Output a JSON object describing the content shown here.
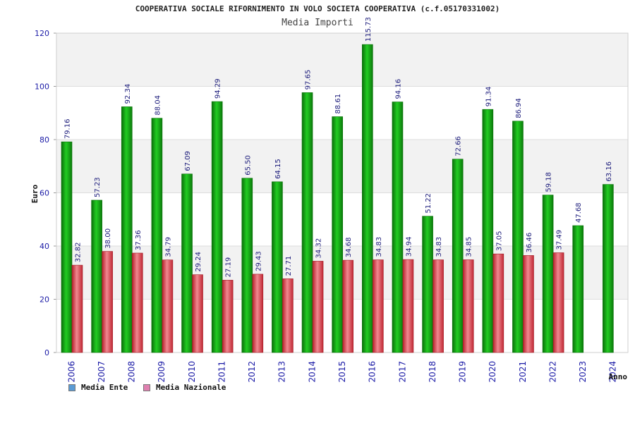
{
  "chart_data": {
    "type": "bar",
    "title": "COOPERATIVA SOCIALE RIFORNIMENTO IN VOLO SOCIETA COOPERATIVA (c.f.05170331002)",
    "subtitle": "Media Importi",
    "ylabel": "Euro",
    "xlabel": "Anno",
    "ylim": [
      0,
      120
    ],
    "yticks": [
      "0",
      "20",
      "40",
      "60",
      "80",
      "100",
      "120"
    ],
    "grid": true,
    "legend_position": "bottom-left",
    "categories": [
      "2006",
      "2007",
      "2008",
      "2009",
      "2010",
      "2011",
      "2012",
      "2013",
      "2014",
      "2015",
      "2016",
      "2017",
      "2018",
      "2019",
      "2020",
      "2021",
      "2022",
      "2023",
      "2024"
    ],
    "series": [
      {
        "name": "Media Ente",
        "color": "#19b219",
        "legend_color": "#5b9bd5",
        "values": [
          79.16,
          57.23,
          92.34,
          88.04,
          67.09,
          94.29,
          65.5,
          64.15,
          97.65,
          88.61,
          115.73,
          94.16,
          51.22,
          72.66,
          91.34,
          86.94,
          59.18,
          47.68,
          63.16
        ],
        "labels": [
          "79.16",
          "57.23",
          "92.34",
          "88.04",
          "67.09",
          "94.29",
          "65.50",
          "64.15",
          "97.65",
          "88.61",
          "115.73",
          "94.16",
          "51.22",
          "72.66",
          "91.34",
          "86.94",
          "59.18",
          "47.68",
          "63.16"
        ]
      },
      {
        "name": "Media Nazionale",
        "color": "#e04a55",
        "legend_color": "#e080b0",
        "values": [
          32.82,
          38.0,
          37.36,
          34.79,
          29.24,
          27.19,
          29.43,
          27.71,
          34.32,
          34.68,
          34.83,
          34.94,
          34.83,
          34.85,
          37.05,
          36.46,
          37.49,
          null,
          null
        ],
        "labels": [
          "32.82",
          "38.00",
          "37.36",
          "34.79",
          "29.24",
          "27.19",
          "29.43",
          "27.71",
          "34.32",
          "34.68",
          "34.83",
          "34.94",
          "34.83",
          "34.85",
          "37.05",
          "36.46",
          "37.49",
          "",
          ""
        ]
      }
    ]
  }
}
